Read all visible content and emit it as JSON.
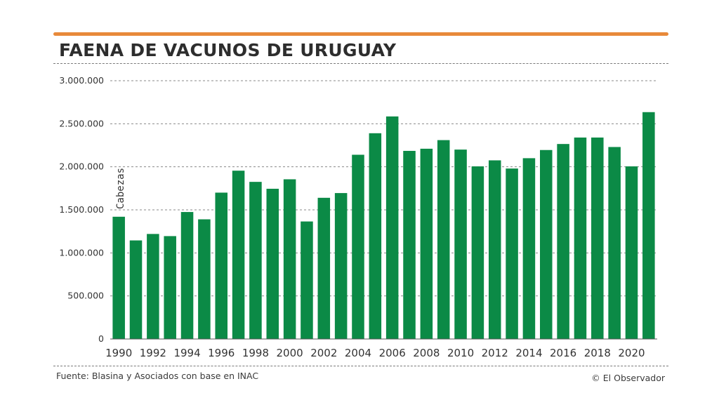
{
  "title": "FAENA DE VACUNOS DE URUGUAY",
  "source": "Fuente: Blasina y Asociados con base en INAC",
  "credit": "© El Observador",
  "colors": {
    "accent": "#e8893a",
    "bar": "#0b8a46",
    "grid": "#8a8a8a",
    "text": "#333333"
  },
  "chart_data": {
    "type": "bar",
    "title": "FAENA DE VACUNOS DE URUGUAY",
    "xlabel": "",
    "ylabel": "Cabezas",
    "ylim": [
      0,
      3000000
    ],
    "yticks": [
      0,
      500000,
      1000000,
      1500000,
      2000000,
      2500000,
      3000000
    ],
    "ytick_labels": [
      "0",
      "500.000",
      "1.000.000",
      "1.500.000",
      "2.000.000",
      "2.500.000",
      "3.000.000"
    ],
    "categories": [
      "1990",
      "1991",
      "1992",
      "1993",
      "1994",
      "1995",
      "1996",
      "1997",
      "1998",
      "1999",
      "2000",
      "2001",
      "2002",
      "2003",
      "2004",
      "2005",
      "2006",
      "2007",
      "2008",
      "2009",
      "2010",
      "2011",
      "2012",
      "2013",
      "2014",
      "2015",
      "2016",
      "2017",
      "2018",
      "2019",
      "2020",
      "2021"
    ],
    "xtick_labels": [
      "1990",
      "1992",
      "1994",
      "1996",
      "1998",
      "2000",
      "2002",
      "2004",
      "2006",
      "2008",
      "2010",
      "2012",
      "2014",
      "2016",
      "2018",
      "2020"
    ],
    "values": [
      1420000,
      1145000,
      1220000,
      1195000,
      1475000,
      1390000,
      1700000,
      1955000,
      1825000,
      1745000,
      1855000,
      1365000,
      1640000,
      1695000,
      2140000,
      2390000,
      2585000,
      2185000,
      2210000,
      2310000,
      2200000,
      2005000,
      2075000,
      1980000,
      2100000,
      2195000,
      2265000,
      2340000,
      2340000,
      2230000,
      2005000,
      2635000
    ],
    "grid": true
  }
}
